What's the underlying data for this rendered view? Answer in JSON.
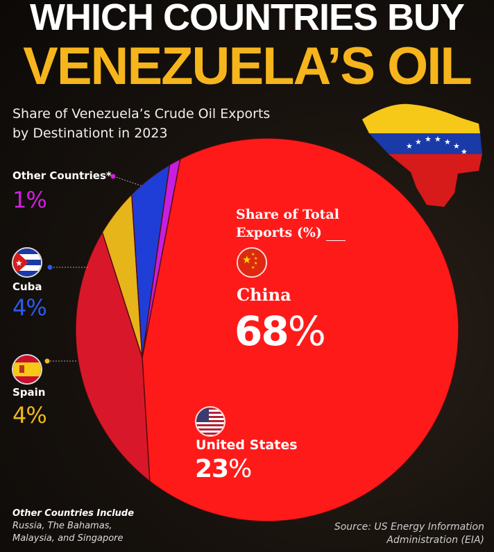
{
  "title_line1": "WHICH COUNTRIES BUY",
  "title_line2": "VENEZUELA’S OIL",
  "subtitle_line1": "Share of Venezuela’s Crude Oil Exports",
  "subtitle_line2": "by Destinationt in 2023",
  "legend_line1": "Share of Total",
  "legend_line2": "Exports (%)",
  "colors": {
    "china": "#ff1a1a",
    "united_states": "#d8182a",
    "spain": "#e6b51a",
    "cuba": "#1f3ed8",
    "other": "#c81ee0",
    "title_accent": "#f6b51c"
  },
  "chart_data": {
    "type": "pie",
    "title": "Share of Venezuela’s Crude Oil Exports by Destinationt in 2023",
    "unit": "%",
    "slices": [
      {
        "name": "China",
        "value": 68,
        "label": "68%"
      },
      {
        "name": "United States",
        "value": 23,
        "label": "23%"
      },
      {
        "name": "Spain",
        "value": 4,
        "label": "4%"
      },
      {
        "name": "Cuba",
        "value": 4,
        "label": "4%"
      },
      {
        "name": "Other Countries*",
        "value": 1,
        "label": "1%"
      }
    ]
  },
  "labels": {
    "other_name": "Other Countries*",
    "other_value": "1%",
    "cuba_name": "Cuba",
    "cuba_value": "4%",
    "spain_name": "Spain",
    "spain_value": "4%",
    "china_name": "China",
    "china_value": "68",
    "us_name": "United States",
    "us_value": "23"
  },
  "footer": {
    "note_heading": "Other Countries Include",
    "note_line1": "Russia, The Bahamas,",
    "note_line2": "Malaysia, and Singapore",
    "source_line1": "Source: US Energy Information",
    "source_line2": "Administration (EIA)"
  }
}
